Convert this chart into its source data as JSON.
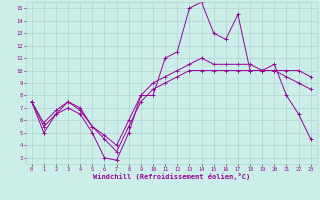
{
  "title": "",
  "xlabel": "Windchill (Refroidissement éolien,°C)",
  "ylabel": "",
  "bg_color": "#cceee8",
  "line_color": "#990099",
  "grid_color": "#aacccc",
  "x_ticks": [
    0,
    1,
    2,
    3,
    4,
    5,
    6,
    7,
    8,
    9,
    10,
    11,
    12,
    13,
    14,
    15,
    16,
    17,
    18,
    19,
    20,
    21,
    22,
    23
  ],
  "y_ticks": [
    3,
    4,
    5,
    6,
    7,
    8,
    9,
    10,
    11,
    12,
    13,
    14,
    15
  ],
  "xlim": [
    -0.5,
    23.5
  ],
  "ylim": [
    2.5,
    15.5
  ],
  "series1": [
    7.5,
    5.0,
    6.5,
    7.0,
    6.5,
    5.0,
    3.0,
    2.8,
    5.0,
    8.0,
    8.0,
    11.0,
    11.5,
    15.0,
    15.5,
    13.0,
    12.5,
    14.5,
    10.0,
    10.0,
    10.5,
    8.0,
    6.5,
    4.5
  ],
  "series2": [
    7.5,
    5.5,
    6.5,
    7.5,
    7.0,
    5.5,
    4.5,
    3.5,
    5.5,
    7.5,
    8.5,
    9.0,
    9.5,
    10.0,
    10.0,
    10.0,
    10.0,
    10.0,
    10.0,
    10.0,
    10.0,
    10.0,
    10.0,
    9.5
  ],
  "series3": [
    7.5,
    5.8,
    6.8,
    7.5,
    6.8,
    5.5,
    4.8,
    4.0,
    6.0,
    8.0,
    9.0,
    9.5,
    10.0,
    10.5,
    11.0,
    10.5,
    10.5,
    10.5,
    10.5,
    10.0,
    10.0,
    9.5,
    9.0,
    8.5
  ]
}
